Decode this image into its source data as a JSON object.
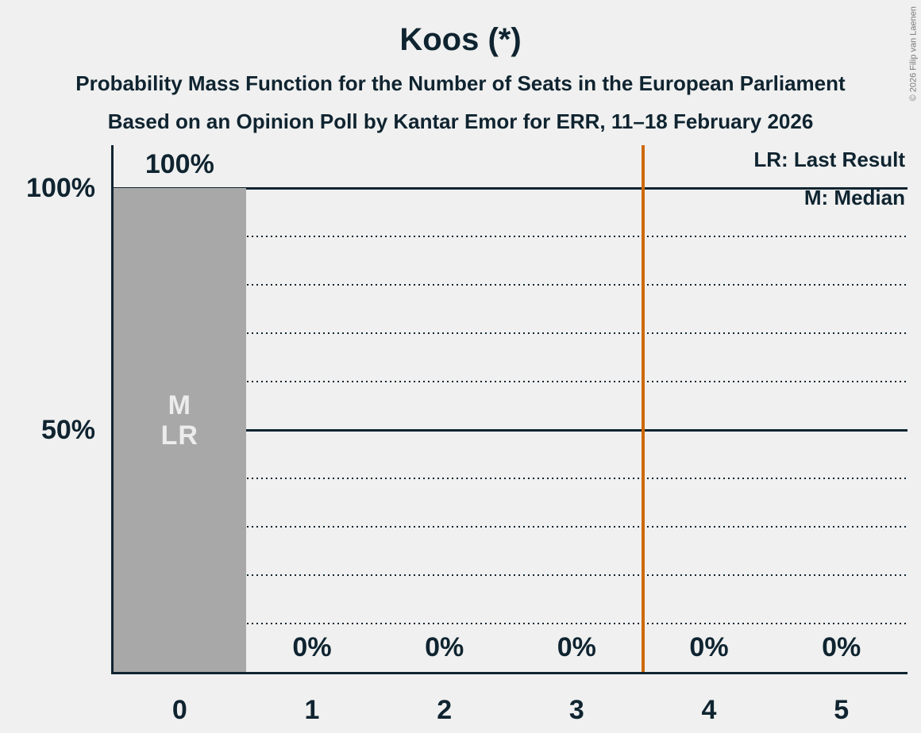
{
  "page": {
    "title": "Koos (*)",
    "subtitle1": "Probability Mass Function for the Number of Seats in the European Parliament",
    "subtitle2": "Based on an Opinion Poll by Kantar Emor for ERR, 11–18 February 2026",
    "copyright": "© 2026 Filip van Laenen"
  },
  "legend": {
    "lr": "LR: Last Result",
    "m": "M: Median"
  },
  "chart_data": {
    "type": "bar",
    "title": "Koos (*)",
    "categories": [
      "0",
      "1",
      "2",
      "3",
      "4",
      "5"
    ],
    "values": [
      100,
      0,
      0,
      0,
      0,
      0
    ],
    "value_labels": [
      "100%",
      "0%",
      "0%",
      "0%",
      "0%",
      "0%"
    ],
    "ylim": [
      0,
      100
    ],
    "y_ticks": [
      {
        "value": 100,
        "label": "100%"
      },
      {
        "value": 50,
        "label": "50%"
      }
    ],
    "gridlines": {
      "dotted": [
        10,
        20,
        30,
        40,
        60,
        70,
        80,
        90
      ],
      "solid": [
        50,
        100
      ]
    },
    "median": 0,
    "last_result": 0,
    "annotations": [
      {
        "category": 0,
        "lines": [
          "M",
          "LR"
        ]
      }
    ],
    "vline": {
      "x": 3.5,
      "color": "#cd690a"
    },
    "bar_color": "#a8a8a8",
    "bar_label_color": "#ececec",
    "background_color": "#f0f0f0",
    "text_color": "#0f2430"
  }
}
